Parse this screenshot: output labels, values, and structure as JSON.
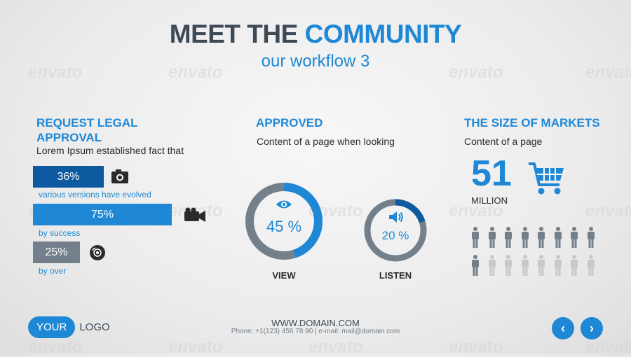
{
  "header": {
    "title_a": "MEET THE ",
    "title_b": "COMMUNITY",
    "subtitle": "our workflow 3"
  },
  "watermark": "envato",
  "left": {
    "heading_line1": "REQUEST LEGAL",
    "heading_line2": "APPROVAL",
    "text": "Lorem Ipsum established fact that",
    "bars": [
      {
        "label": "36%",
        "value": 36,
        "color": "#0d5aa0",
        "icon": "camera-icon",
        "caption": "various versions have evolved"
      },
      {
        "label": "75%",
        "value": 75,
        "color": "#1e88d6",
        "icon": "video-camera-icon",
        "caption": "by success"
      },
      {
        "label": "25%",
        "value": 25,
        "color": "#737f8a",
        "icon": "disc-icon",
        "caption": "by over"
      }
    ]
  },
  "middle": {
    "heading": "APPROVED",
    "text": "Content of a page when looking",
    "donuts": [
      {
        "label": "45 %",
        "value": 45,
        "icon": "eye-icon",
        "caption": "VIEW"
      },
      {
        "label": "20 %",
        "value": 20,
        "icon": "speaker-icon",
        "caption": "LISTEN"
      }
    ]
  },
  "right": {
    "heading": "THE SIZE OF MARKETS",
    "text": "Content of a page",
    "big_number": "51",
    "unit": "MILLION",
    "icon": "shopping-cart-icon",
    "people_total": 16,
    "people_highlighted": 9
  },
  "footer": {
    "domain": "WWW.DOMAIN.COM",
    "contact": "Phone: +1(123) 456 78 90 | e-mail: mail@domain.com",
    "logo_a": "YOUR",
    "logo_b": "LOGO",
    "prev": "‹",
    "next": "›"
  },
  "colors": {
    "primary": "#1e88d6",
    "dark": "#3d4a56",
    "gray": "#737f8a",
    "light": "#c8c8c8"
  }
}
